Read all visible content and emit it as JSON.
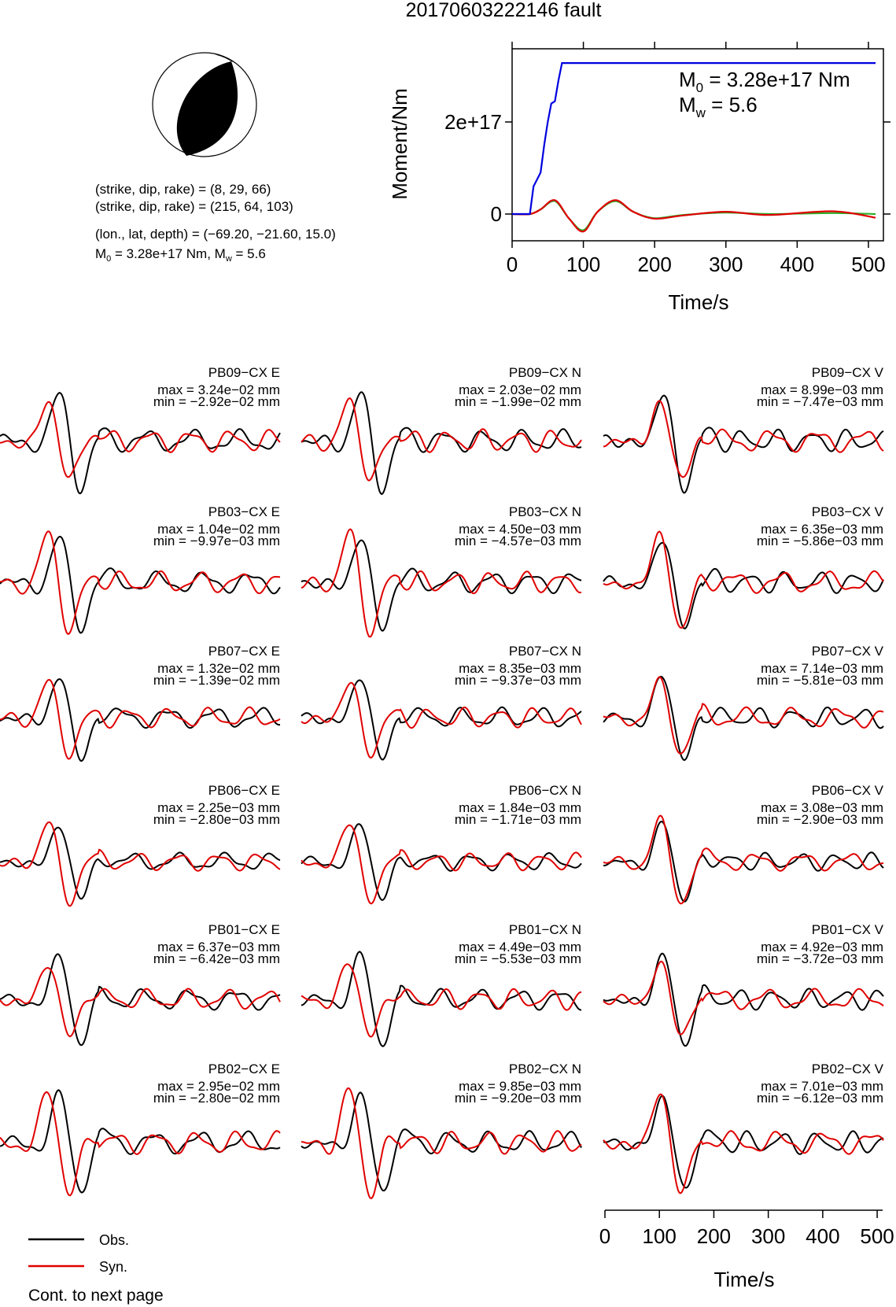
{
  "figure": {
    "title": "20170603222146 fault"
  },
  "mechanism": {
    "nodal_plane_1": "(strike, dip, rake) = (8, 29, 66)",
    "nodal_plane_2": "(strike, dip, rake) = (215, 64, 103)",
    "location": "(lon., lat, depth) = (−69.20, −21.60, 15.0)",
    "m0_label": "M",
    "m0_sub": "0",
    "m0_value": " = 3.28e+17 Nm, M",
    "mw_sub": "w",
    "mw_value": " = 5.6"
  },
  "colors": {
    "observed": "#000000",
    "synthetic": "#e00000",
    "cumulative_moment": "#0000e0",
    "moment_rate_green": "#2ab02a",
    "beachball_fill": "#000000"
  },
  "legend": {
    "obs": "Obs.",
    "syn": "Syn.",
    "continued": "Cont. to next page"
  },
  "chart_data": [
    {
      "type": "line",
      "name": "moment-function",
      "xlabel": "Time/s",
      "ylabel": "Moment/Nm",
      "xlim": [
        0,
        510
      ],
      "ylim": [
        -6e+16,
        3.6e+17
      ],
      "xticks": [
        0,
        100,
        200,
        300,
        400,
        500
      ],
      "yticks": [
        0,
        2e+17
      ],
      "ytick_labels": [
        "0",
        "2e+17"
      ],
      "annotation": {
        "m0_label": "M",
        "m0_sub": "0",
        "m0_text": " = 3.28e+17 Nm",
        "mw_label": "M",
        "mw_sub": "w",
        "mw_text": " = 5.6"
      },
      "series": [
        {
          "role": "cumulative",
          "x": [
            0,
            25,
            30,
            35,
            40,
            45,
            50,
            55,
            60,
            65,
            70,
            75,
            100,
            200,
            300,
            400,
            510
          ],
          "y": [
            0,
            0,
            6e+16,
            7.5e+16,
            9e+16,
            1.5e+17,
            2e+17,
            2.4e+17,
            2.45e+17,
            2.9e+17,
            3.28e+17,
            3.28e+17,
            3.28e+17,
            3.28e+17,
            3.28e+17,
            3.28e+17,
            3.28e+17
          ]
        },
        {
          "role": "rate-red",
          "x": [
            0,
            25,
            40,
            60,
            80,
            100,
            120,
            145,
            170,
            200,
            240,
            300,
            360,
            450,
            510
          ],
          "y": [
            0,
            0,
            1e+16,
            3e+16,
            -1e+16,
            -3.8e+16,
            5000000000000000.0,
            3e+16,
            5000000000000000.0,
            -1e+16,
            -3000000000000000.0,
            5000000000000000.0,
            -2000000000000000.0,
            6000000000000000.0,
            -8000000000000000.0
          ]
        },
        {
          "role": "rate-green",
          "x": [
            0,
            25,
            40,
            60,
            80,
            100,
            120,
            145,
            170,
            200,
            240,
            300,
            360,
            450,
            510
          ],
          "y": [
            0,
            0,
            1e+16,
            2.8e+16,
            -1e+16,
            -3.5e+16,
            5000000000000000.0,
            2.8e+16,
            5000000000000000.0,
            -9000000000000000.0,
            -2000000000000000.0,
            3000000000000000.0,
            0.0,
            2000000000000000.0,
            0.0
          ]
        }
      ]
    },
    {
      "type": "line",
      "name": "waveforms",
      "xlabel": "Time/s",
      "xlim": [
        0,
        510
      ],
      "xticks": [
        0,
        100,
        200,
        300,
        400,
        500
      ],
      "stations": [
        "PB09",
        "PB03",
        "PB07",
        "PB06",
        "PB01",
        "PB02"
      ],
      "network": "CX",
      "components": [
        "E",
        "N",
        "V"
      ],
      "panels": [
        {
          "label": "PB09−CX E",
          "max": "max = 3.24e−02 mm",
          "min": "min = −2.92e−02 mm"
        },
        {
          "label": "PB09−CX N",
          "max": "max = 2.03e−02 mm",
          "min": "min = −1.99e−02 mm"
        },
        {
          "label": "PB09−CX V",
          "max": "max = 8.99e−03 mm",
          "min": "min = −7.47e−03 mm"
        },
        {
          "label": "PB03−CX E",
          "max": "max = 1.04e−02 mm",
          "min": "min = −9.97e−03 mm"
        },
        {
          "label": "PB03−CX N",
          "max": "max = 4.50e−03 mm",
          "min": "min = −4.57e−03 mm"
        },
        {
          "label": "PB03−CX V",
          "max": "max = 6.35e−03 mm",
          "min": "min = −5.86e−03 mm"
        },
        {
          "label": "PB07−CX E",
          "max": "max = 1.32e−02 mm",
          "min": "min = −1.39e−02 mm"
        },
        {
          "label": "PB07−CX N",
          "max": "max = 8.35e−03 mm",
          "min": "min = −9.37e−03 mm"
        },
        {
          "label": "PB07−CX V",
          "max": "max = 7.14e−03 mm",
          "min": "min = −5.81e−03 mm"
        },
        {
          "label": "PB06−CX E",
          "max": "max = 2.25e−03 mm",
          "min": "min = −2.80e−03 mm"
        },
        {
          "label": "PB06−CX N",
          "max": "max = 1.84e−03 mm",
          "min": "min = −1.71e−03 mm"
        },
        {
          "label": "PB06−CX V",
          "max": "max = 3.08e−03 mm",
          "min": "min = −2.90e−03 mm"
        },
        {
          "label": "PB01−CX E",
          "max": "max = 6.37e−03 mm",
          "min": "min = −6.42e−03 mm"
        },
        {
          "label": "PB01−CX N",
          "max": "max = 4.49e−03 mm",
          "min": "min = −5.53e−03 mm"
        },
        {
          "label": "PB01−CX V",
          "max": "max = 4.92e−03 mm",
          "min": "min = −3.72e−03 mm"
        },
        {
          "label": "PB02−CX E",
          "max": "max = 2.95e−02 mm",
          "min": "min = −2.80e−02 mm"
        },
        {
          "label": "PB02−CX N",
          "max": "max = 9.85e−03 mm",
          "min": "min = −9.20e−03 mm"
        },
        {
          "label": "PB02−CX V",
          "max": "max = 7.01e−03 mm",
          "min": "min = −6.12e−03 mm"
        }
      ]
    }
  ]
}
